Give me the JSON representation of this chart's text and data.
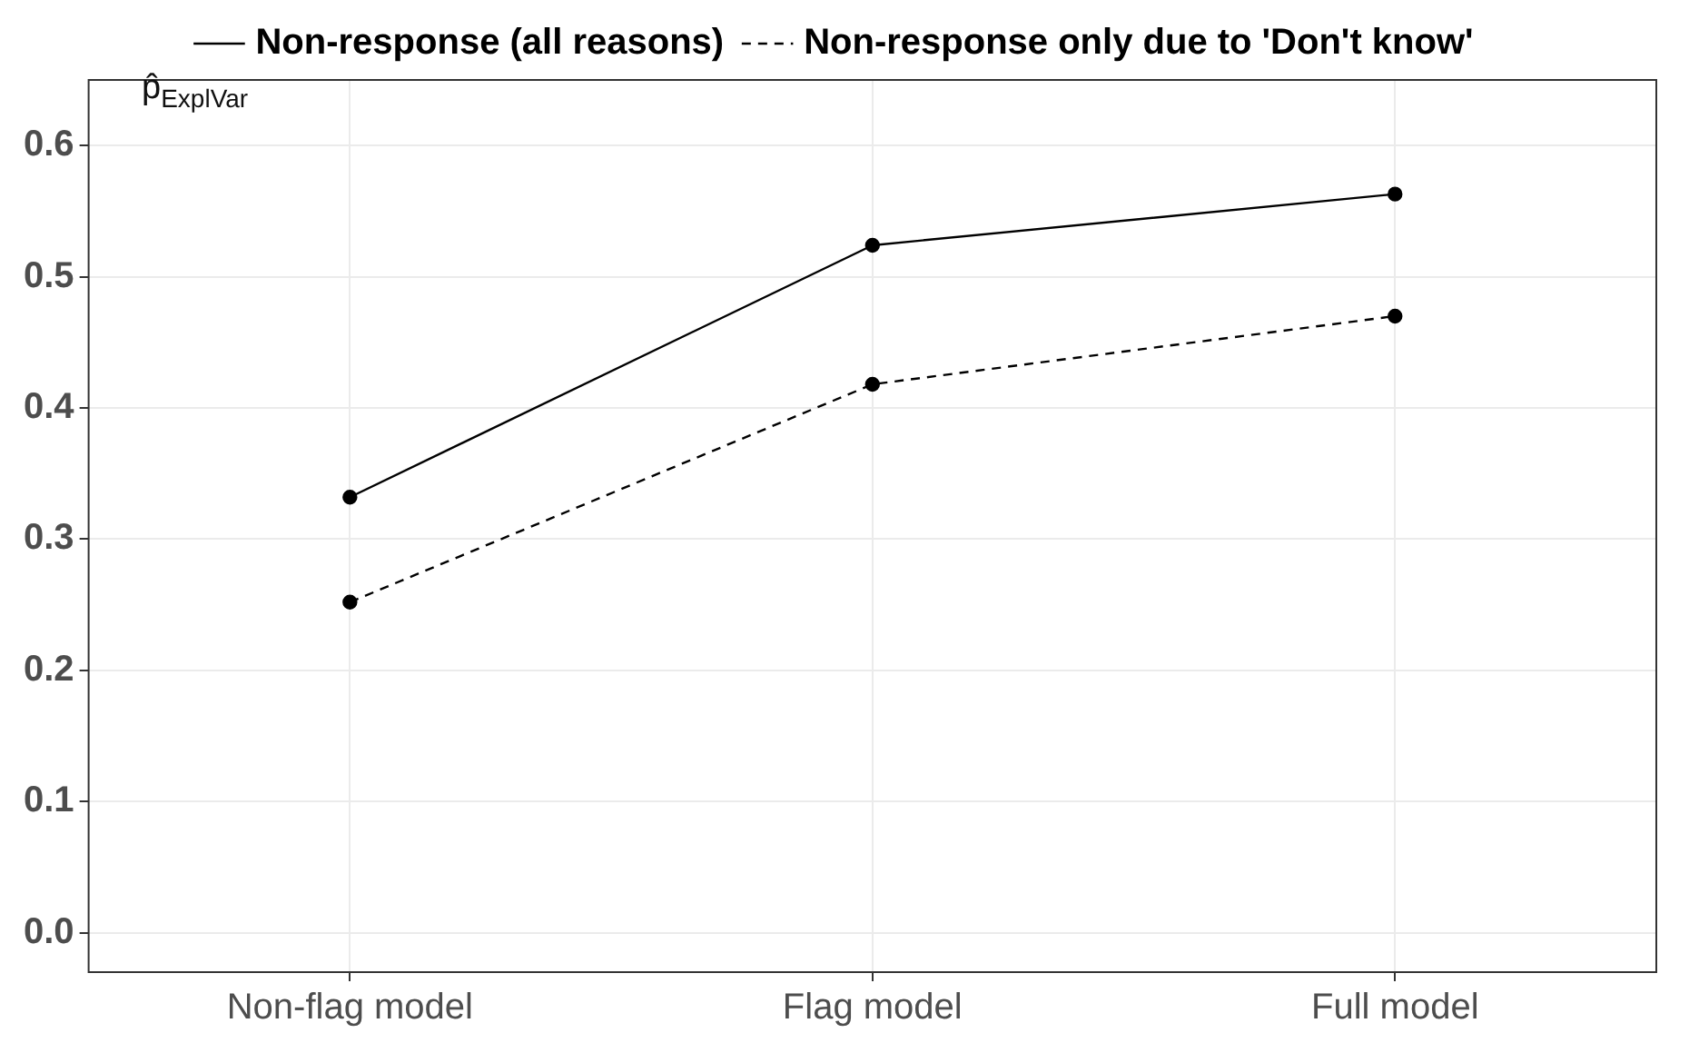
{
  "chart_data": {
    "type": "line",
    "categories": [
      "Non-flag model",
      "Flag model",
      "Full model"
    ],
    "series": [
      {
        "name": "Non-response (all reasons)",
        "color": "#000000",
        "line_style": "solid",
        "values": [
          0.332,
          0.524,
          0.563
        ]
      },
      {
        "name": "Non-response only due to 'Don't know'",
        "color": "#000000",
        "line_style": "dashed",
        "values": [
          0.252,
          0.418,
          0.47
        ]
      }
    ],
    "ylim": [
      -0.03,
      0.65
    ],
    "yticks": [
      {
        "value": 0,
        "label": "0.0"
      },
      {
        "value": 0.1,
        "label": "0.1"
      },
      {
        "value": 0.2,
        "label": "0.2"
      },
      {
        "value": 0.3,
        "label": "0.3"
      },
      {
        "value": 0.4,
        "label": "0.4"
      },
      {
        "value": 0.5,
        "label": "0.5"
      },
      {
        "value": 0.6,
        "label": "0.6"
      }
    ],
    "grid": true,
    "legend": "top",
    "marker": "circle",
    "annotations": [
      "p̂$_{ExplVar}$"
    ]
  }
}
